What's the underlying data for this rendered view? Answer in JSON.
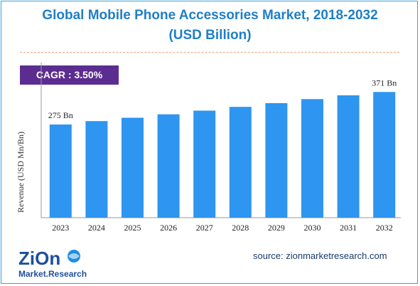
{
  "title_line1": "Global Mobile Phone Accessories Market, 2018-2032",
  "title_line2": "(USD Billion)",
  "cagr_label": "CAGR : 3.50%",
  "source": "source: zionmarketresearch.com",
  "logo": {
    "word1": "ZiOn",
    "word2": "Market.Research"
  },
  "colors": {
    "bar": "#2e95f0",
    "title": "#1f7fc6",
    "cagr_bg": "#5c2d91",
    "frame": "#37a0d8"
  },
  "chart_data": {
    "type": "bar",
    "categories": [
      "2023",
      "2024",
      "2025",
      "2026",
      "2027",
      "2028",
      "2029",
      "2030",
      "2031",
      "2032"
    ],
    "values": [
      275,
      285,
      295,
      305,
      316,
      327,
      338,
      350,
      361,
      371
    ],
    "data_labels": [
      {
        "index": 0,
        "text": "275 Bn"
      },
      {
        "index": 9,
        "text": "371 Bn"
      }
    ],
    "ylabel": "Revenue (USD Mn/Bn)",
    "xlabel": "",
    "ylim": [
      0,
      400
    ],
    "grid": false,
    "legend": "none"
  }
}
